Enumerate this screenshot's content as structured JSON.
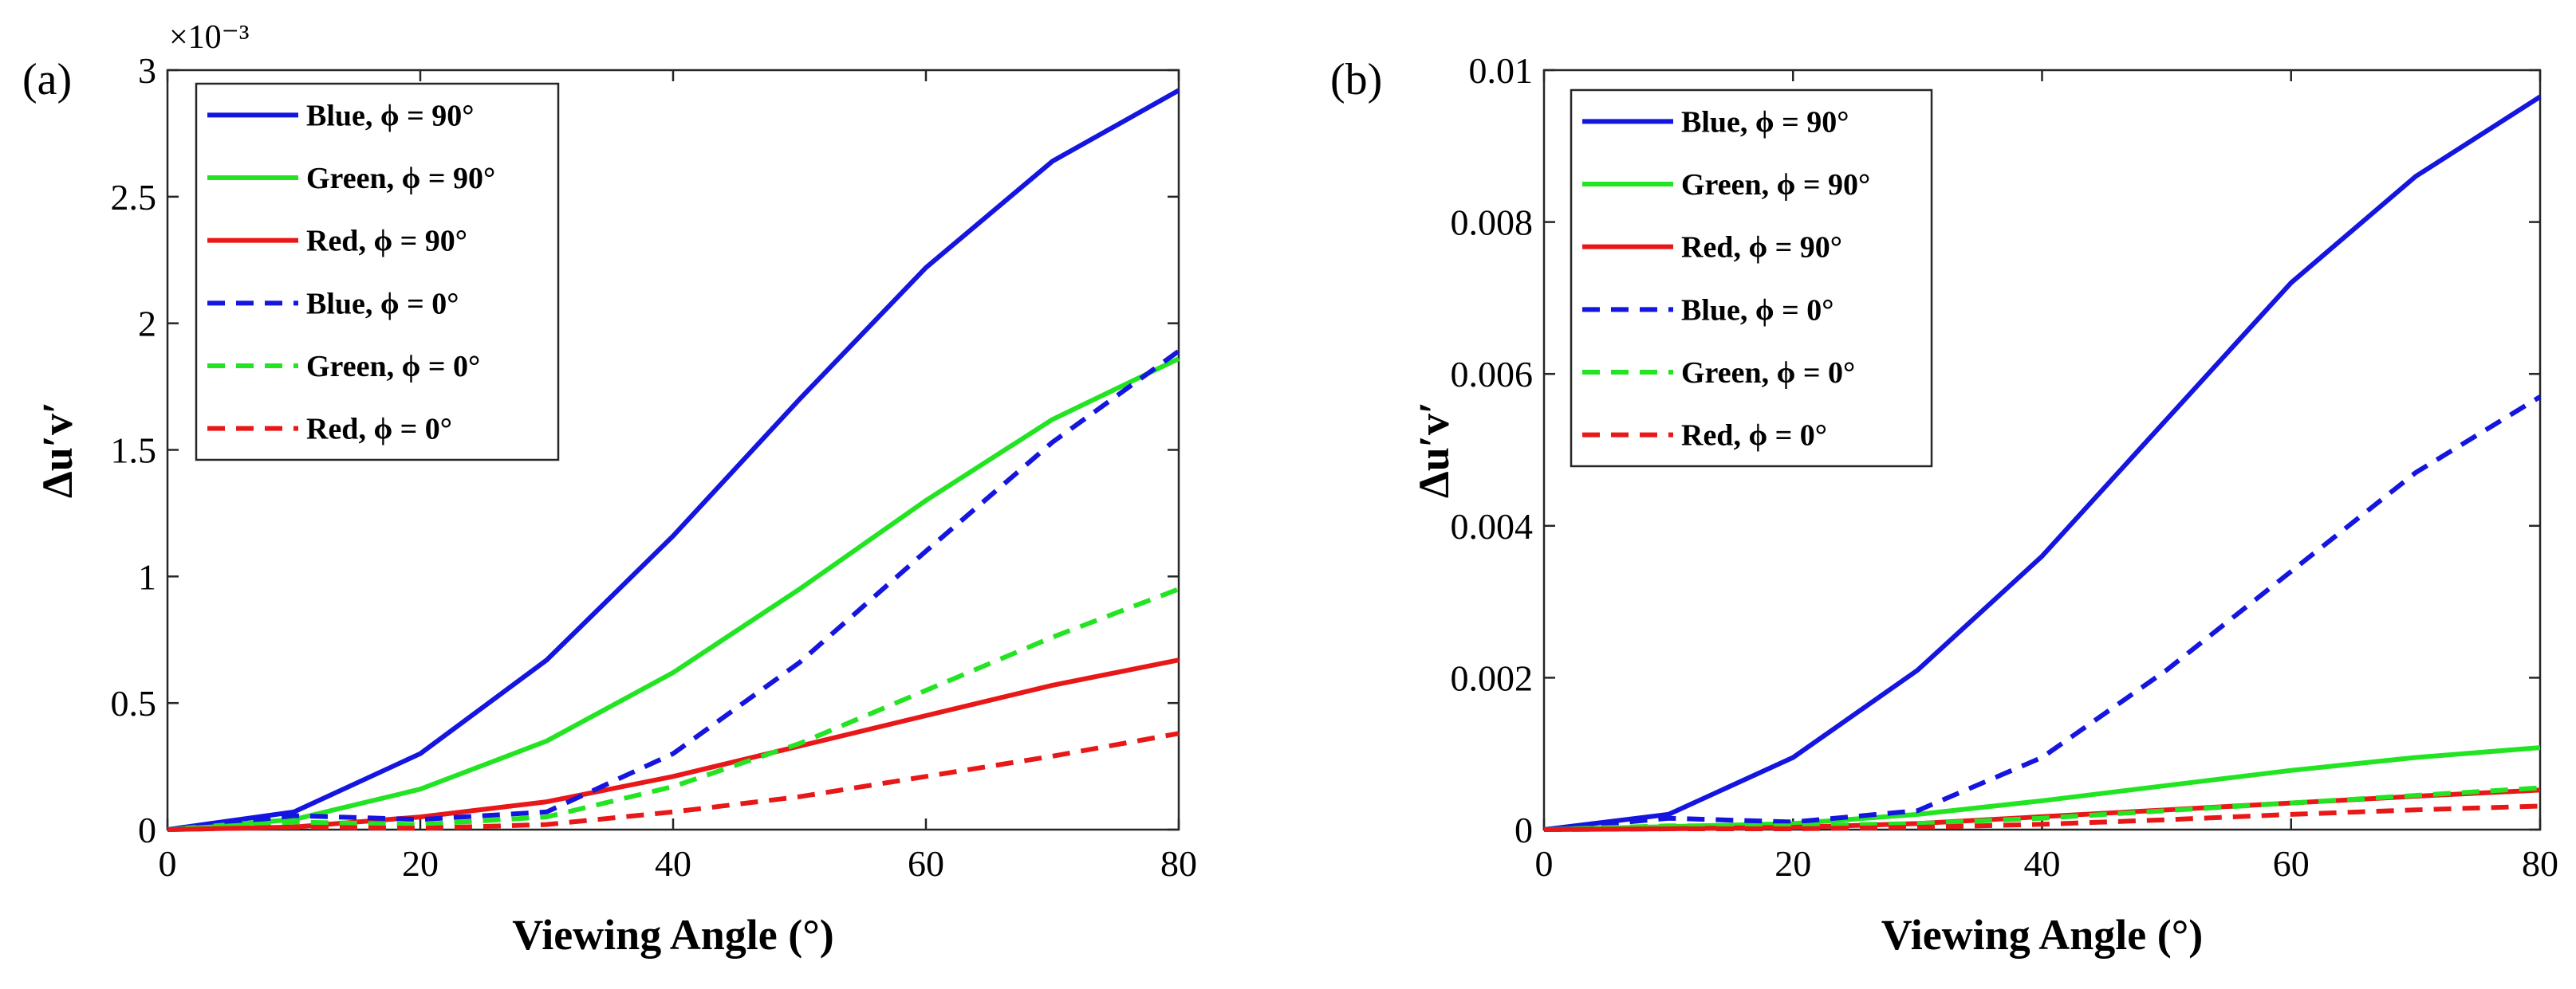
{
  "chart_data": [
    {
      "type": "line",
      "panel_label": "(a)",
      "xlabel": "Viewing Angle (°)",
      "ylabel": "Δu′v′",
      "y_exponent_label": "×10⁻³",
      "xlim": [
        0,
        80
      ],
      "ylim": [
        0,
        3
      ],
      "xticks": [
        0,
        20,
        40,
        60,
        80
      ],
      "yticks": [
        0,
        0.5,
        1,
        1.5,
        2,
        2.5,
        3
      ],
      "ytick_labels": [
        "0",
        "0.5",
        "1",
        "1.5",
        "2",
        "2.5",
        "3"
      ],
      "legend_position": "top-left",
      "x": [
        0,
        10,
        20,
        30,
        40,
        50,
        60,
        70,
        80
      ],
      "series": [
        {
          "name": "Blue, ϕ = 90°",
          "color": "#1515e0",
          "dash": "solid",
          "values": [
            0,
            0.07,
            0.3,
            0.67,
            1.16,
            1.7,
            2.22,
            2.64,
            2.92
          ]
        },
        {
          "name": "Green, ϕ = 90°",
          "color": "#22e422",
          "dash": "solid",
          "values": [
            0,
            0.04,
            0.16,
            0.35,
            0.62,
            0.95,
            1.3,
            1.62,
            1.86
          ]
        },
        {
          "name": "Red, ϕ = 90°",
          "color": "#e81818",
          "dash": "solid",
          "values": [
            0,
            0.01,
            0.05,
            0.11,
            0.21,
            0.33,
            0.45,
            0.57,
            0.67
          ]
        },
        {
          "name": "Blue, ϕ = 0°",
          "color": "#1515e0",
          "dash": "dashed",
          "values": [
            0,
            0.055,
            0.04,
            0.07,
            0.3,
            0.66,
            1.1,
            1.53,
            1.89
          ]
        },
        {
          "name": "Green, ϕ = 0°",
          "color": "#22e422",
          "dash": "dashed",
          "values": [
            0,
            0.03,
            0.02,
            0.05,
            0.17,
            0.34,
            0.55,
            0.76,
            0.95
          ]
        },
        {
          "name": "Red, ϕ = 0°",
          "color": "#e81818",
          "dash": "dashed",
          "values": [
            0,
            0.01,
            0.005,
            0.02,
            0.07,
            0.13,
            0.21,
            0.29,
            0.38
          ]
        }
      ]
    },
    {
      "type": "line",
      "panel_label": "(b)",
      "xlabel": "Viewing Angle (°)",
      "ylabel": "Δu′v′",
      "y_exponent_label": "",
      "xlim": [
        0,
        80
      ],
      "ylim": [
        0,
        0.01
      ],
      "xticks": [
        0,
        20,
        40,
        60,
        80
      ],
      "yticks": [
        0,
        0.002,
        0.004,
        0.006,
        0.008,
        0.01
      ],
      "ytick_labels": [
        "0",
        "0.002",
        "0.004",
        "0.006",
        "0.008",
        "0.01"
      ],
      "legend_position": "top-left",
      "x": [
        0,
        10,
        20,
        30,
        40,
        50,
        60,
        70,
        80
      ],
      "series": [
        {
          "name": "Blue, ϕ = 90°",
          "color": "#1515e0",
          "dash": "solid",
          "values": [
            0,
            0.0002,
            0.00095,
            0.0021,
            0.0036,
            0.0054,
            0.0072,
            0.0086,
            0.00965
          ]
        },
        {
          "name": "Green, ϕ = 90°",
          "color": "#22e422",
          "dash": "solid",
          "values": [
            0,
            4e-05,
            8e-05,
            0.0002,
            0.00038,
            0.00058,
            0.00078,
            0.00095,
            0.00108
          ]
        },
        {
          "name": "Red, ϕ = 90°",
          "color": "#e81818",
          "dash": "solid",
          "values": [
            0,
            1e-05,
            3e-05,
            8e-05,
            0.00017,
            0.00026,
            0.00035,
            0.00044,
            0.00052
          ]
        },
        {
          "name": "Blue, ϕ = 0°",
          "color": "#1515e0",
          "dash": "dashed",
          "values": [
            0,
            0.00015,
            0.0001,
            0.00025,
            0.00095,
            0.0021,
            0.0034,
            0.0047,
            0.0057
          ]
        },
        {
          "name": "Green, ϕ = 0°",
          "color": "#22e422",
          "dash": "dashed",
          "values": [
            0,
            5e-05,
            5e-05,
            8e-05,
            0.00015,
            0.00025,
            0.00035,
            0.00045,
            0.00055
          ]
        },
        {
          "name": "Red, ϕ = 0°",
          "color": "#e81818",
          "dash": "dashed",
          "values": [
            0,
            1e-05,
            1e-05,
            3e-05,
            7e-05,
            0.00013,
            0.0002,
            0.00026,
            0.00031
          ]
        }
      ]
    }
  ]
}
